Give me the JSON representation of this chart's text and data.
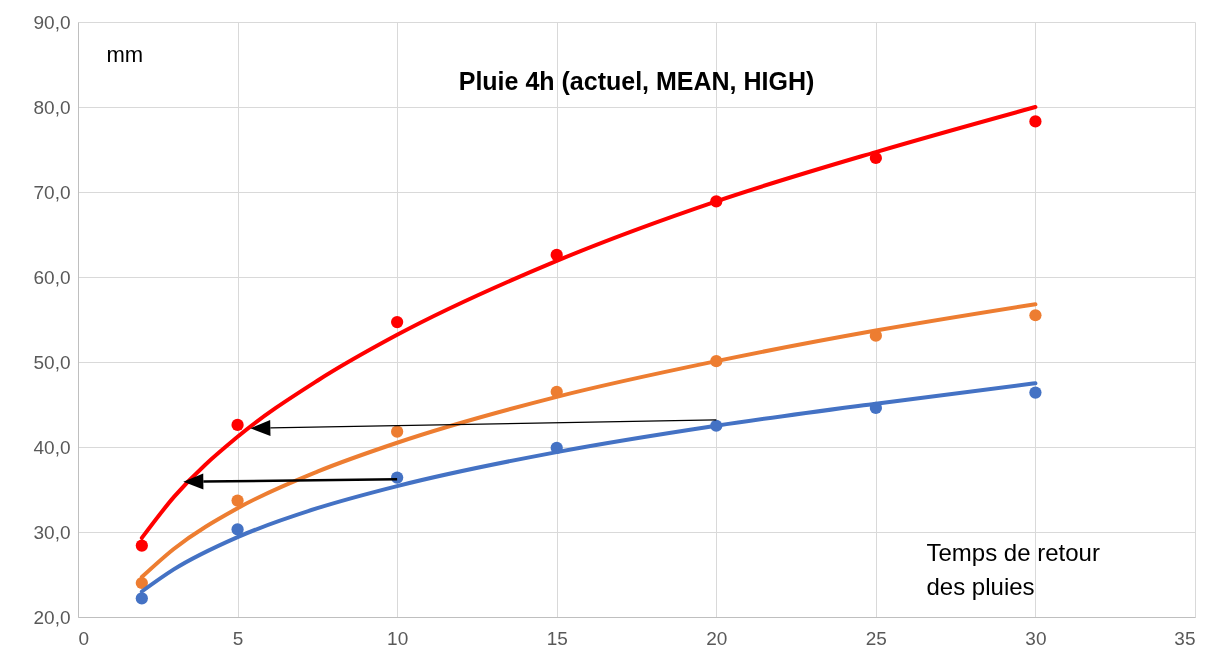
{
  "chart_data": {
    "type": "scatter",
    "title": "Pluie 4h (actuel, MEAN, HIGH)",
    "xlabel": "Temps de retour des pluies",
    "ylabel": "mm",
    "x": [
      2,
      5,
      10,
      15,
      20,
      25,
      30
    ],
    "series": [
      {
        "color": "#ff0000",
        "values": [
          28.4,
          42.6,
          54.7,
          62.6,
          68.9,
          74.0,
          78.3
        ]
      },
      {
        "color": "#ed7d31",
        "values": [
          24.0,
          33.7,
          41.8,
          46.5,
          50.1,
          53.1,
          55.5
        ]
      },
      {
        "color": "#4472c4",
        "values": [
          22.2,
          30.3,
          36.4,
          39.9,
          42.5,
          44.6,
          46.4
        ]
      },
      {
        "type": "line",
        "marker": "none",
        "color": "#ff0000",
        "x": [
          2,
          3,
          5,
          7.5,
          10,
          15,
          20,
          25,
          30
        ],
        "values": [
          29.3,
          34.1,
          41.2,
          47.8,
          53.2,
          61.9,
          68.9,
          74.7,
          80.0
        ]
      },
      {
        "type": "line",
        "marker": "none",
        "color": "#ed7d31",
        "x": [
          2,
          3,
          5,
          7.5,
          10,
          15,
          20,
          25,
          30
        ],
        "values": [
          24.7,
          28.0,
          32.8,
          37.1,
          40.5,
          45.9,
          50.1,
          53.7,
          56.8
        ]
      },
      {
        "type": "line",
        "marker": "none",
        "color": "#4472c4",
        "x": [
          2,
          3,
          5,
          7.5,
          10,
          15,
          20,
          25,
          30
        ],
        "values": [
          23.0,
          25.6,
          29.4,
          32.8,
          35.4,
          39.4,
          42.5,
          45.1,
          47.5
        ]
      }
    ],
    "xlim": [
      0,
      35
    ],
    "xticks": [
      0,
      5,
      10,
      15,
      20,
      25,
      30,
      35
    ],
    "ylim": [
      20,
      90
    ],
    "yticks": [
      {
        "value": 20,
        "label": "20,0"
      },
      {
        "value": 30,
        "label": "30,0"
      },
      {
        "value": 40,
        "label": "40,0"
      },
      {
        "value": 50,
        "label": "50,0"
      },
      {
        "value": 60,
        "label": "60,0"
      },
      {
        "value": 70,
        "label": "70,0"
      },
      {
        "value": 80,
        "label": "80,0"
      },
      {
        "value": 90,
        "label": "90,0"
      }
    ],
    "grid": true,
    "marker": "circle",
    "line_style": "solid"
  }
}
